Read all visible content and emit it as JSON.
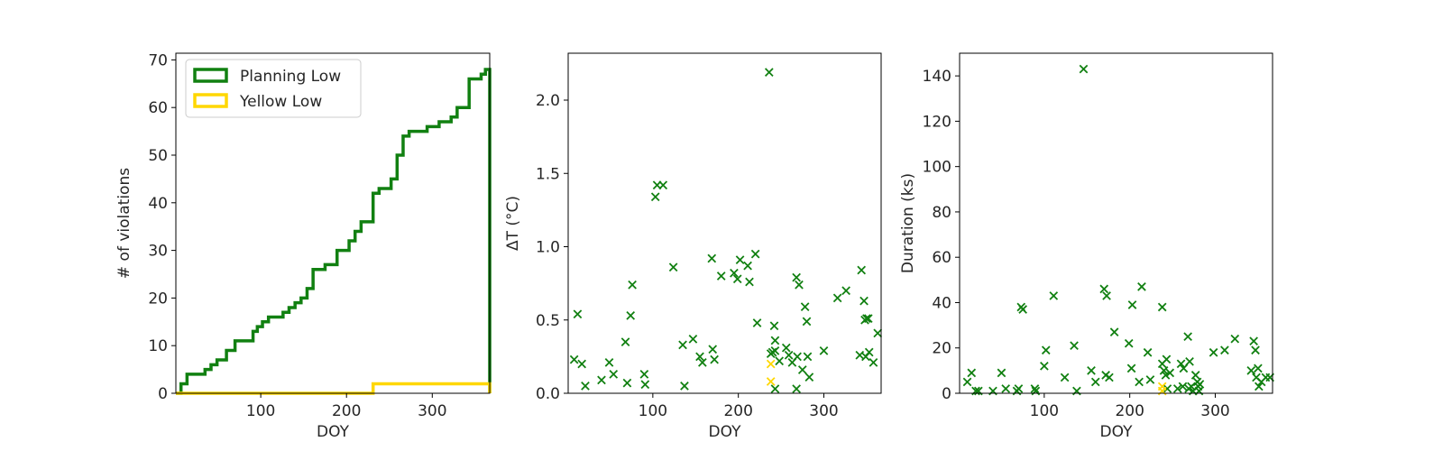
{
  "colors": {
    "planning": "#118011",
    "yellow": "#ffd700",
    "axis": "#000000"
  },
  "chart_data": [
    {
      "type": "line",
      "subtype": "step-histogram",
      "xlabel": "DOY",
      "ylabel": "# of violations",
      "xlim": [
        1,
        367
      ],
      "ylim": [
        0,
        71.4
      ],
      "xticks": [
        100,
        200,
        300
      ],
      "yticks": [
        0,
        10,
        20,
        30,
        40,
        50,
        60,
        70
      ],
      "legend": {
        "placement": "top-left"
      },
      "series": [
        {
          "name": "Planning Low",
          "color": "#118011",
          "x": [
            1,
            7,
            14,
            35,
            42,
            49,
            60,
            70,
            77,
            91,
            96,
            102,
            109,
            126,
            133,
            140,
            147,
            154,
            161,
            175,
            189,
            203,
            210,
            217,
            231,
            238,
            252,
            259,
            266,
            273,
            280,
            294,
            308,
            322,
            329,
            336,
            343,
            357,
            362,
            367
          ],
          "values": [
            0,
            2,
            4,
            5,
            6,
            7,
            9,
            11,
            11,
            13,
            14,
            15,
            16,
            17,
            18,
            19,
            20,
            22,
            26,
            27,
            30,
            32,
            34,
            36,
            42,
            43,
            45,
            50,
            54,
            55,
            55,
            56,
            57,
            58,
            60,
            60,
            66,
            67,
            68,
            0
          ]
        },
        {
          "name": "Yellow Low",
          "color": "#ffd700",
          "x": [
            1,
            231,
            367
          ],
          "values": [
            0,
            2,
            0
          ]
        }
      ]
    },
    {
      "type": "scatter",
      "marker": "x",
      "xlabel": "DOY",
      "ylabel": "ΔT (°C)",
      "xlim": [
        1,
        367
      ],
      "ylim": [
        0,
        2.32
      ],
      "xticks": [
        100,
        200,
        300
      ],
      "yticks": [
        0.0,
        0.5,
        1.0,
        1.5,
        2.0
      ],
      "series": [
        {
          "color": "#118011",
          "points": [
            [
              8,
              0.23
            ],
            [
              12,
              0.54
            ],
            [
              17,
              0.2
            ],
            [
              21,
              0.05
            ],
            [
              40,
              0.09
            ],
            [
              49,
              0.21
            ],
            [
              54,
              0.13
            ],
            [
              68,
              0.35
            ],
            [
              70,
              0.07
            ],
            [
              74,
              0.53
            ],
            [
              76,
              0.74
            ],
            [
              90,
              0.13
            ],
            [
              91,
              0.06
            ],
            [
              103,
              1.34
            ],
            [
              105,
              1.42
            ],
            [
              112,
              1.42
            ],
            [
              124,
              0.86
            ],
            [
              135,
              0.33
            ],
            [
              137,
              0.05
            ],
            [
              147,
              0.37
            ],
            [
              155,
              0.25
            ],
            [
              158,
              0.21
            ],
            [
              169,
              0.92
            ],
            [
              170,
              0.3
            ],
            [
              172,
              0.23
            ],
            [
              180,
              0.8
            ],
            [
              195,
              0.82
            ],
            [
              199,
              0.78
            ],
            [
              202,
              0.91
            ],
            [
              211,
              0.87
            ],
            [
              213,
              0.76
            ],
            [
              220,
              0.95
            ],
            [
              222,
              0.48
            ],
            [
              236,
              2.19
            ],
            [
              238,
              0.27
            ],
            [
              240,
              0.28
            ],
            [
              242,
              0.46
            ],
            [
              243,
              0.29
            ],
            [
              243,
              0.36
            ],
            [
              243,
              0.03
            ],
            [
              248,
              0.22
            ],
            [
              256,
              0.31
            ],
            [
              259,
              0.26
            ],
            [
              263,
              0.21
            ],
            [
              268,
              0.03
            ],
            [
              268,
              0.79
            ],
            [
              269,
              0.25
            ],
            [
              271,
              0.74
            ],
            [
              275,
              0.16
            ],
            [
              278,
              0.59
            ],
            [
              280,
              0.49
            ],
            [
              281,
              0.25
            ],
            [
              283,
              0.11
            ],
            [
              300,
              0.29
            ],
            [
              316,
              0.65
            ],
            [
              326,
              0.7
            ],
            [
              342,
              0.26
            ],
            [
              344,
              0.84
            ],
            [
              347,
              0.63
            ],
            [
              348,
              0.5
            ],
            [
              349,
              0.25
            ],
            [
              350,
              0.51
            ],
            [
              352,
              0.51
            ],
            [
              353,
              0.28
            ],
            [
              358,
              0.21
            ],
            [
              363,
              0.41
            ]
          ]
        },
        {
          "color": "#ffd700",
          "points": [
            [
              238,
              0.2
            ],
            [
              238,
              0.08
            ]
          ]
        }
      ]
    },
    {
      "type": "scatter",
      "marker": "x",
      "xlabel": "DOY",
      "ylabel": "Duration (ks)",
      "xlim": [
        1,
        367
      ],
      "ylim": [
        0,
        150
      ],
      "xticks": [
        100,
        200,
        300
      ],
      "yticks": [
        0,
        20,
        40,
        60,
        80,
        100,
        120,
        140
      ],
      "series": [
        {
          "color": "#118011",
          "points": [
            [
              10,
              5
            ],
            [
              15,
              9
            ],
            [
              20,
              1
            ],
            [
              23,
              1
            ],
            [
              40,
              1
            ],
            [
              50,
              9
            ],
            [
              55,
              2
            ],
            [
              68,
              1
            ],
            [
              70,
              2
            ],
            [
              73,
              38
            ],
            [
              75,
              37
            ],
            [
              89,
              2
            ],
            [
              90,
              1
            ],
            [
              100,
              12
            ],
            [
              102,
              19
            ],
            [
              111,
              43
            ],
            [
              124,
              7
            ],
            [
              135,
              21
            ],
            [
              138,
              1
            ],
            [
              146,
              143
            ],
            [
              155,
              10
            ],
            [
              160,
              5
            ],
            [
              170,
              46
            ],
            [
              172,
              8
            ],
            [
              173,
              43
            ],
            [
              176,
              7
            ],
            [
              182,
              27
            ],
            [
              199,
              22
            ],
            [
              202,
              11
            ],
            [
              203,
              39
            ],
            [
              211,
              5
            ],
            [
              214,
              47
            ],
            [
              221,
              18
            ],
            [
              224,
              6
            ],
            [
              238,
              13
            ],
            [
              238,
              38
            ],
            [
              240,
              10
            ],
            [
              242,
              8
            ],
            [
              243,
              15
            ],
            [
              244,
              2
            ],
            [
              247,
              9
            ],
            [
              256,
              2
            ],
            [
              260,
              13
            ],
            [
              262,
              3
            ],
            [
              263,
              11
            ],
            [
              268,
              25
            ],
            [
              269,
              2
            ],
            [
              270,
              14
            ],
            [
              272,
              3
            ],
            [
              274,
              1
            ],
            [
              277,
              8
            ],
            [
              279,
              5
            ],
            [
              280,
              3
            ],
            [
              281,
              1
            ],
            [
              282,
              4
            ],
            [
              298,
              18
            ],
            [
              311,
              19
            ],
            [
              323,
              24
            ],
            [
              342,
              10
            ],
            [
              345,
              23
            ],
            [
              347,
              19
            ],
            [
              348,
              7
            ],
            [
              350,
              11
            ],
            [
              351,
              3
            ],
            [
              354,
              5
            ],
            [
              359,
              7
            ],
            [
              364,
              7
            ]
          ]
        },
        {
          "color": "#ffd700",
          "points": [
            [
              238,
              3
            ],
            [
              238,
              1
            ]
          ]
        }
      ]
    }
  ]
}
